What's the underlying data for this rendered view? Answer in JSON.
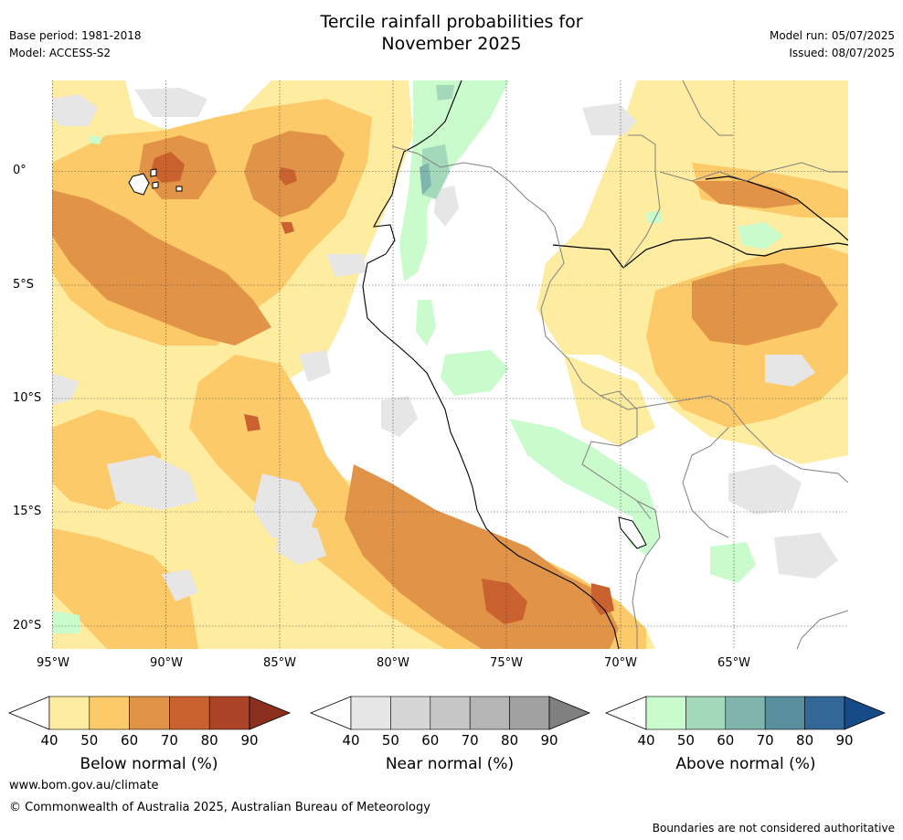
{
  "header": {
    "title_line1": "Tercile rainfall probabilities for",
    "title_line2": "November 2025",
    "base_period": "Base period: 1981-2018",
    "model": "Model: ACCESS-S2",
    "model_run": "Model run: 05/07/2025",
    "issued": "Issued: 08/07/2025"
  },
  "map": {
    "lat_labels": [
      "0°",
      "5°S",
      "10°S",
      "15°S",
      "20°S"
    ],
    "lon_labels": [
      "95°W",
      "90°W",
      "85°W",
      "80°W",
      "75°W",
      "70°W",
      "65°W"
    ],
    "extent": {
      "lon_min": -95,
      "lon_max": -60,
      "lat_min": -21,
      "lat_max": 4
    },
    "ocean_color": "#ffffff",
    "coast_color": "#000000",
    "border_color": "#808080"
  },
  "colorbars": [
    {
      "label": "Below normal (%)",
      "ticks": [
        "40",
        "50",
        "60",
        "70",
        "80",
        "90"
      ],
      "colors": [
        "#ffffff",
        "#feeca0",
        "#fdca6a",
        "#e19447",
        "#c9622f",
        "#ab4426",
        "#8c2f1e"
      ]
    },
    {
      "label": "Near normal (%)",
      "ticks": [
        "40",
        "50",
        "60",
        "70",
        "80",
        "90"
      ],
      "colors": [
        "#ffffff",
        "#e6e6e6",
        "#d6d6d6",
        "#c6c6c6",
        "#b5b5b5",
        "#a1a1a1",
        "#808080"
      ]
    },
    {
      "label": "Above normal (%)",
      "ticks": [
        "40",
        "50",
        "60",
        "70",
        "80",
        "90"
      ],
      "colors": [
        "#ffffff",
        "#c9fbcc",
        "#a3d8bb",
        "#7fb5ac",
        "#5a8f9d",
        "#336797",
        "#154b87"
      ]
    }
  ],
  "footer": {
    "url": "www.bom.gov.au/climate",
    "copyright": "© Commonwealth of Australia 2025, Australian Bureau of Meteorology",
    "disclaimer": "Boundaries are not considered authoritative"
  }
}
